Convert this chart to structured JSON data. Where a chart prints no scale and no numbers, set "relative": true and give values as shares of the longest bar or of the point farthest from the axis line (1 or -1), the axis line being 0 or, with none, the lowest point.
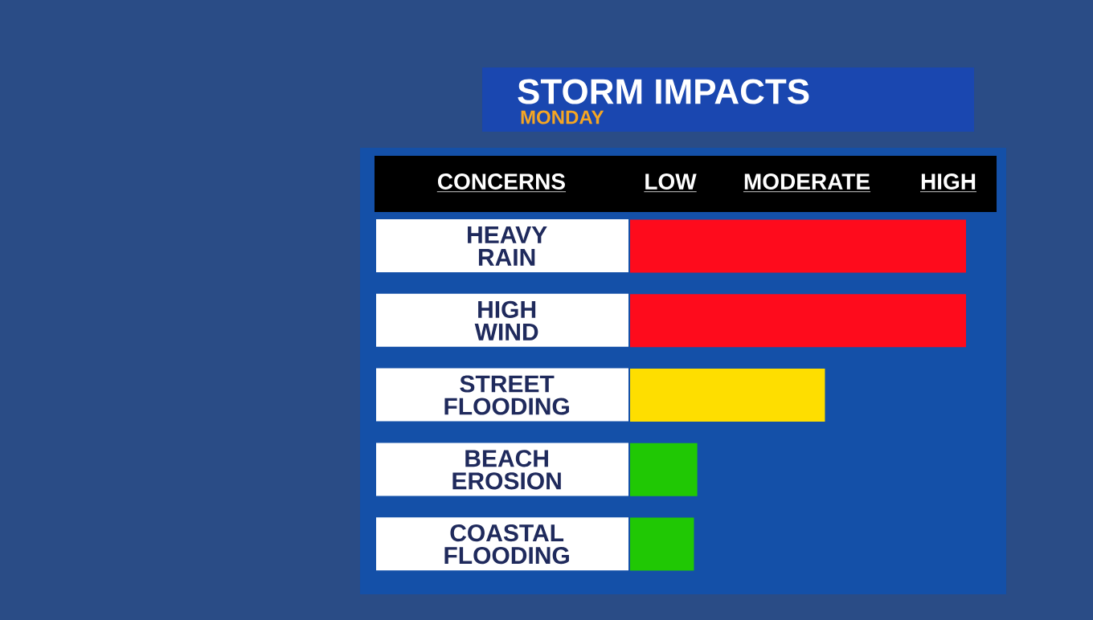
{
  "chart_data": {
    "type": "bar",
    "orientation": "horizontal",
    "relative": true,
    "title": "STORM IMPACTS",
    "subtitle": "MONDAY",
    "ylabel": "CONCERNS",
    "categories": [
      "HEAVY RAIN",
      "HIGH WIND",
      "STREET FLOODING",
      "BEACH EROSION",
      "COASTAL FLOODING"
    ],
    "values": [
      1,
      1,
      0.58,
      0.2,
      0.19
    ],
    "colors": [
      "#fe0b1c",
      "#fe0b1c",
      "#fede00",
      "#20c804",
      "#20c804"
    ],
    "annotations": [
      "LOW",
      "MODERATE",
      "HIGH"
    ]
  }
}
